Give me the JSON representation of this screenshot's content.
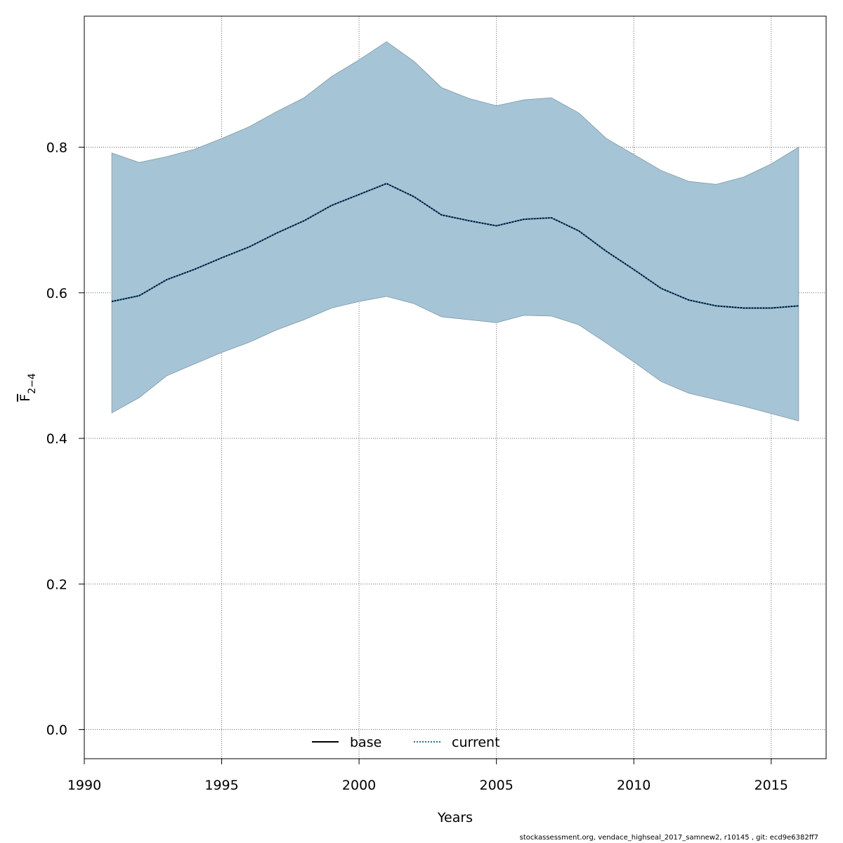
{
  "chart_data": {
    "type": "area",
    "xlabel": "Years",
    "ylabel": {
      "main": "F",
      "sub": "2−4"
    },
    "xlim": [
      1990,
      2017
    ],
    "ylim": [
      -0.04,
      0.98
    ],
    "x_ticks": [
      1990,
      1995,
      2000,
      2005,
      2010,
      2015
    ],
    "y_ticks": [
      0.0,
      0.2,
      0.4,
      0.6,
      0.8
    ],
    "grid": true,
    "legend_position": "bottom-center",
    "years": [
      1991,
      1992,
      1993,
      1994,
      1995,
      1996,
      1997,
      1998,
      1999,
      2000,
      2001,
      2002,
      2003,
      2004,
      2005,
      2006,
      2007,
      2008,
      2009,
      2010,
      2011,
      2012,
      2013,
      2014,
      2015,
      2016
    ],
    "band": {
      "upper": [
        0.792,
        0.779,
        0.787,
        0.797,
        0.812,
        0.828,
        0.849,
        0.868,
        0.897,
        0.92,
        0.945,
        0.918,
        0.882,
        0.867,
        0.857,
        0.865,
        0.868,
        0.847,
        0.812,
        0.79,
        0.768,
        0.753,
        0.749,
        0.759,
        0.777,
        0.8
      ],
      "lower": [
        0.435,
        0.456,
        0.486,
        0.502,
        0.518,
        0.532,
        0.549,
        0.563,
        0.579,
        0.588,
        0.595,
        0.585,
        0.567,
        0.563,
        0.559,
        0.569,
        0.568,
        0.556,
        0.531,
        0.505,
        0.478,
        0.462,
        0.453,
        0.444,
        0.434,
        0.424
      ],
      "fill": "#a5c4d6",
      "stroke": "#7f9aa7"
    },
    "series": [
      {
        "name": "base",
        "style": "solid",
        "color": "#000000",
        "values": [
          0.588,
          0.596,
          0.618,
          0.632,
          0.648,
          0.663,
          0.682,
          0.699,
          0.72,
          0.735,
          0.75,
          0.732,
          0.707,
          0.699,
          0.692,
          0.701,
          0.703,
          0.685,
          0.657,
          0.632,
          0.606,
          0.59,
          0.582,
          0.579,
          0.579,
          0.582
        ]
      },
      {
        "name": "current",
        "style": "dotted",
        "color": "#1f6fa8",
        "values": [
          0.588,
          0.596,
          0.618,
          0.632,
          0.648,
          0.663,
          0.682,
          0.699,
          0.72,
          0.735,
          0.75,
          0.732,
          0.707,
          0.699,
          0.692,
          0.701,
          0.703,
          0.685,
          0.657,
          0.632,
          0.606,
          0.59,
          0.582,
          0.579,
          0.579,
          0.582
        ]
      }
    ]
  },
  "footer": "stockassessment.org, vendace_highseal_2017_samnew2, r10145 , git: ecd9e6382ff7"
}
